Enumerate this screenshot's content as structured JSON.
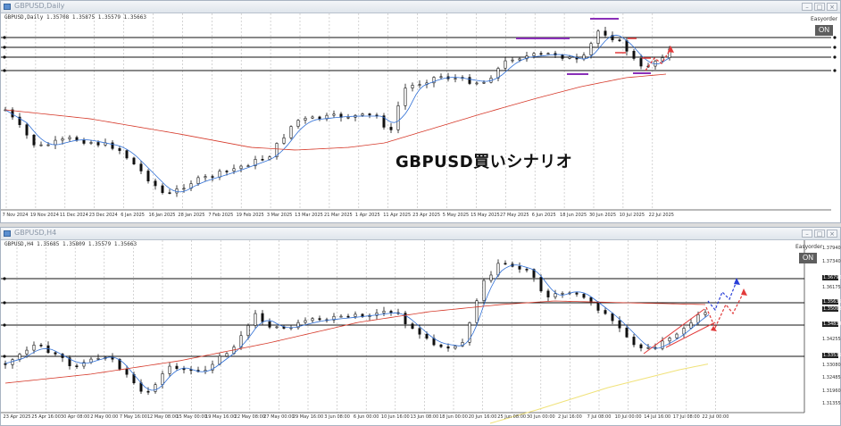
{
  "top_window": {
    "title": "GBPUSD,Daily",
    "info": "GBPUSD,Daily  1.35708 1.35875 1.35579 1.35663",
    "ea_name": "Easyorder",
    "on_label": "ON",
    "scenario_text": "GBPUSD買いシナリオ",
    "date_labels": [
      "7 Nov 2024",
      "19 Nov 2024",
      "11 Dec 2024",
      "23 Dec 2024",
      "6 Jan 2025",
      "16 Jan 2025",
      "28 Jan 2025",
      "7 Feb 2025",
      "19 Feb 2025",
      "3 Mar 2025",
      "13 Mar 2025",
      "21 Mar 2025",
      "1 Apr 2025",
      "11 Apr 2025",
      "23 Apr 2025",
      "5 May 2025",
      "15 May 2025",
      "27 May 2025",
      "6 Jun 2025",
      "18 Jun 2025",
      "30 Jun 2025",
      "10 Jul 2025",
      "22 Jul 2025"
    ]
  },
  "bottom_window": {
    "title": "GBPUSD,H4",
    "info": "GBPUSD,H4  1.35685 1.35809 1.35579 1.35663",
    "ea_name": "Easyorder",
    "on_label": "ON",
    "price_labels": [
      "1.37940",
      "1.37340",
      "1.36796",
      "1.36175",
      "1.35635",
      "1.35063",
      "1.34834",
      "1.34255",
      "1.33535",
      "1.33080",
      "1.32485",
      "1.31960",
      "1.31355"
    ],
    "date_labels": [
      "23 Apr 2025",
      "25 Apr 16:00",
      "30 Apr 08:00",
      "2 May 00:00",
      "7 May 16:00",
      "12 May 08:00",
      "15 May 00:00",
      "19 May 16:00",
      "22 May 08:00",
      "27 May 00:00",
      "29 May 16:00",
      "3 Jun 08:00",
      "6 Jun 00:00",
      "10 Jun 16:00",
      "13 Jun 08:00",
      "18 Jun 00:00",
      "20 Jun 16:00",
      "25 Jun 08:00",
      "30 Jun 00:00",
      "2 Jul 16:00",
      "7 Jul 08:00",
      "10 Jul 00:00",
      "14 Jul 16:00",
      "17 Jul 08:00",
      "22 Jul 00:00"
    ]
  },
  "colors": {
    "candle": "#111111",
    "ma_fast": "#2f6fd6",
    "ma_slow": "#d63a2b",
    "ma_long": "#f0e27a",
    "level_line": "#111111",
    "marker": "#8a2fb8",
    "arrow_red": "#e23a3a",
    "arrow_blue": "#2a3fd8"
  }
}
